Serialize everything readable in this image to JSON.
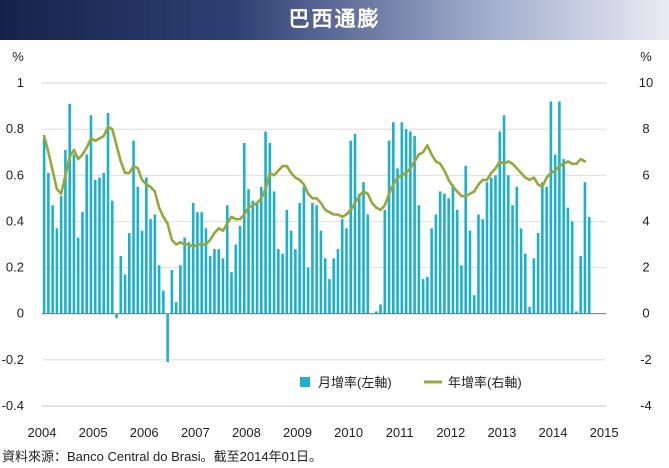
{
  "title": "巴西通膨",
  "source": "資料來源：Banco Central do Brasi。截至2014年01日。",
  "colors": {
    "bar": "#1cb0cf",
    "line": "#95a83a",
    "title_dark": "#15224a"
  },
  "chart_data": {
    "type": "bar+line",
    "left_axis": {
      "unit": "%",
      "min": -0.4,
      "max": 1.0,
      "ticks": [
        "1",
        "0.8",
        "0.6",
        "0.4",
        "0.2",
        "0",
        "-0.2",
        "-0.4"
      ],
      "tick_values": [
        1,
        0.8,
        0.6,
        0.4,
        0.2,
        0,
        -0.2,
        -0.4
      ]
    },
    "right_axis": {
      "unit": "%",
      "min": -4,
      "max": 10,
      "ticks": [
        "10",
        "8",
        "6",
        "4",
        "2",
        "0",
        "-2",
        "-4"
      ],
      "tick_values": [
        10,
        8,
        6,
        4,
        2,
        0,
        -2,
        -4
      ]
    },
    "x_axis": {
      "labels": [
        "2004",
        "2005",
        "2006",
        "2007",
        "2008",
        "2009",
        "2010",
        "2011",
        "2012",
        "2013",
        "2014",
        "2015"
      ]
    },
    "grid": true,
    "legend": {
      "placement": "bottom-right"
    },
    "series": [
      {
        "name": "月增率(左軸)",
        "axis": "left",
        "kind": "bar",
        "values": [
          0.76,
          0.61,
          0.47,
          0.37,
          0.51,
          0.71,
          0.91,
          0.69,
          0.33,
          0.44,
          0.69,
          0.86,
          0.58,
          0.59,
          0.61,
          0.87,
          0.49,
          -0.02,
          0.25,
          0.17,
          0.35,
          0.75,
          0.55,
          0.36,
          0.59,
          0.41,
          0.43,
          0.21,
          0.1,
          -0.21,
          0.19,
          0.05,
          0.21,
          0.33,
          0.31,
          0.48,
          0.44,
          0.44,
          0.37,
          0.25,
          0.28,
          0.28,
          0.24,
          0.47,
          0.18,
          0.3,
          0.38,
          0.74,
          0.54,
          0.49,
          0.48,
          0.55,
          0.79,
          0.74,
          0.53,
          0.28,
          0.26,
          0.45,
          0.36,
          0.28,
          0.48,
          0.55,
          0.2,
          0.48,
          0.47,
          0.36,
          0.24,
          0.15,
          0.24,
          0.28,
          0.41,
          0.37,
          0.75,
          0.78,
          0.52,
          0.57,
          0.43,
          0.0,
          0.01,
          0.04,
          0.45,
          0.75,
          0.83,
          0.63,
          0.83,
          0.8,
          0.79,
          0.77,
          0.47,
          0.15,
          0.16,
          0.37,
          0.43,
          0.53,
          0.52,
          0.5,
          0.56,
          0.45,
          0.21,
          0.64,
          0.36,
          0.08,
          0.43,
          0.41,
          0.57,
          0.59,
          0.6,
          0.79,
          0.86,
          0.6,
          0.47,
          0.55,
          0.37,
          0.26,
          0.03,
          0.24,
          0.35,
          0.57,
          0.55,
          0.92,
          0.69,
          0.92,
          0.67,
          0.46,
          0.4,
          0.01,
          0.25,
          0.57,
          0.42
        ],
        "last_label_hint": "2014"
      },
      {
        "name": "年增率(右軸)",
        "axis": "right",
        "kind": "line",
        "values": [
          7.7,
          7.0,
          6.2,
          5.4,
          5.2,
          6.0,
          6.8,
          7.1,
          6.7,
          6.9,
          7.2,
          7.6,
          7.5,
          7.6,
          7.7,
          8.1,
          8.0,
          7.3,
          6.6,
          6.1,
          6.1,
          6.4,
          6.3,
          5.8,
          5.6,
          5.5,
          5.3,
          4.6,
          4.2,
          3.9,
          3.2,
          3.0,
          3.1,
          3.0,
          3.0,
          2.9,
          3.0,
          3.0,
          3.0,
          3.2,
          3.5,
          3.7,
          3.6,
          3.9,
          4.2,
          4.1,
          4.1,
          4.3,
          4.6,
          4.7,
          4.8,
          5.0,
          5.4,
          6.1,
          6.0,
          6.2,
          6.4,
          6.4,
          6.1,
          5.9,
          5.8,
          5.6,
          5.2,
          5.0,
          5.0,
          4.8,
          4.5,
          4.4,
          4.3,
          4.3,
          4.2,
          4.3,
          4.5,
          4.8,
          5.1,
          5.3,
          5.2,
          4.8,
          4.6,
          4.5,
          4.7,
          5.2,
          5.6,
          5.9,
          6.0,
          6.1,
          6.3,
          6.6,
          6.9,
          7.0,
          7.3,
          6.9,
          6.6,
          6.5,
          6.2,
          5.8,
          5.5,
          5.3,
          5.1,
          5.1,
          5.2,
          5.3,
          5.6,
          5.8,
          5.8,
          6.1,
          6.3,
          6.6,
          6.5,
          6.6,
          6.5,
          6.3,
          6.1,
          5.9,
          5.8,
          5.9,
          5.6,
          5.5,
          5.9,
          6.1,
          6.2,
          6.4,
          6.5,
          6.6,
          6.5,
          6.5,
          6.7,
          6.6
        ]
      }
    ]
  }
}
